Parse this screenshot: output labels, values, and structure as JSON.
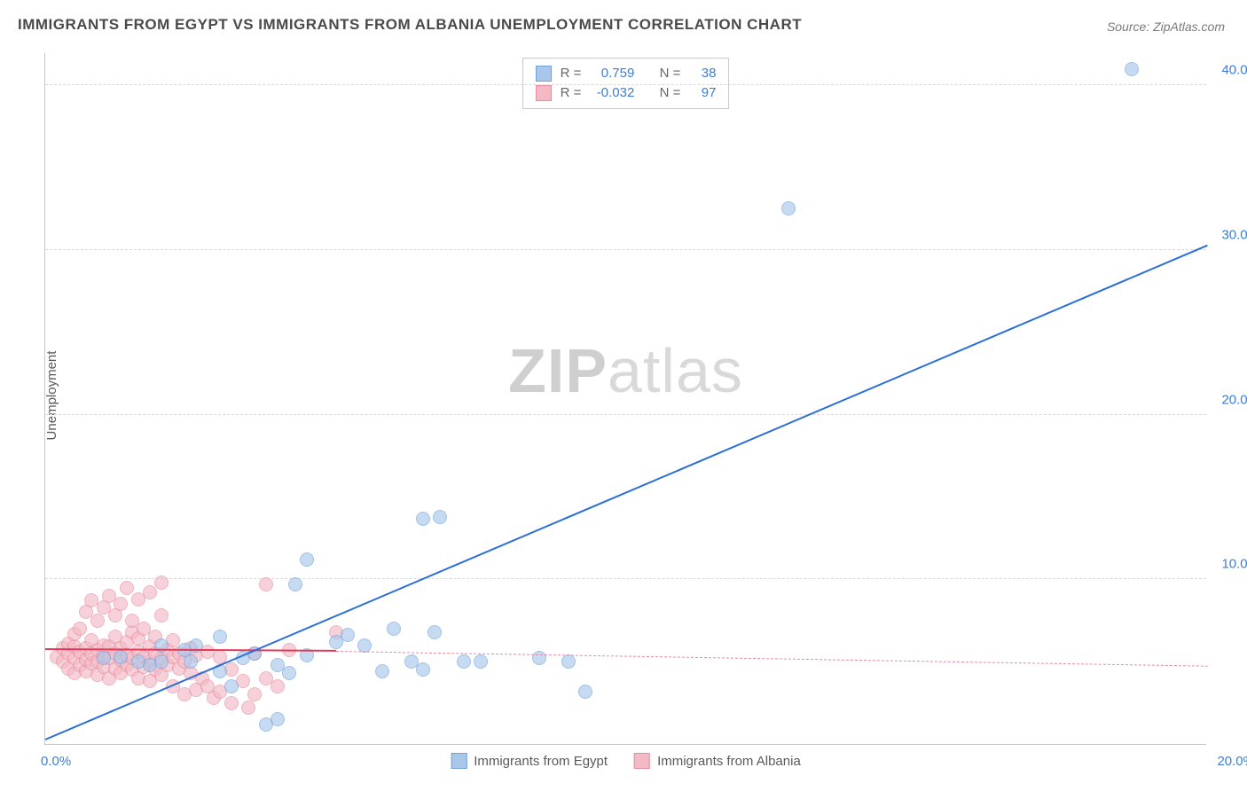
{
  "title": "IMMIGRANTS FROM EGYPT VS IMMIGRANTS FROM ALBANIA UNEMPLOYMENT CORRELATION CHART",
  "source_label": "Source:",
  "source_value": "ZipAtlas.com",
  "ylabel": "Unemployment",
  "watermark_bold": "ZIP",
  "watermark_light": "atlas",
  "chart": {
    "type": "scatter",
    "xlim": [
      0,
      20
    ],
    "ylim": [
      0,
      42
    ],
    "xticks": [
      {
        "v": 0,
        "label": "0.0%",
        "pos": "left"
      },
      {
        "v": 20,
        "label": "20.0%",
        "pos": "right"
      }
    ],
    "yticks": [
      {
        "v": 10,
        "label": "10.0%"
      },
      {
        "v": 20,
        "label": "20.0%"
      },
      {
        "v": 30,
        "label": "30.0%"
      },
      {
        "v": 40,
        "label": "40.0%"
      }
    ],
    "grid_color": "#d8d8d8",
    "background": "#ffffff",
    "marker_radius": 8,
    "series": [
      {
        "name": "Immigrants from Egypt",
        "fill": "#a9c7ea",
        "stroke": "#6fa3dd",
        "trend": {
          "x1": 0,
          "y1": 0.2,
          "x2": 20,
          "y2": 30.2,
          "color": "#2b6fd6",
          "width": 2.5,
          "dash": false
        },
        "R": "0.759",
        "N": "38",
        "points": [
          [
            3.8,
            1.2
          ],
          [
            4.0,
            1.5
          ],
          [
            3.2,
            3.5
          ],
          [
            1.8,
            4.8
          ],
          [
            2.0,
            5.0
          ],
          [
            2.5,
            5.0
          ],
          [
            3.0,
            4.4
          ],
          [
            3.4,
            5.2
          ],
          [
            3.6,
            5.5
          ],
          [
            4.0,
            4.8
          ],
          [
            4.2,
            4.3
          ],
          [
            4.5,
            5.4
          ],
          [
            5.0,
            6.2
          ],
          [
            5.2,
            6.6
          ],
          [
            5.5,
            6.0
          ],
          [
            5.8,
            4.4
          ],
          [
            6.0,
            7.0
          ],
          [
            6.3,
            5.0
          ],
          [
            6.5,
            4.5
          ],
          [
            6.7,
            6.8
          ],
          [
            7.2,
            5.0
          ],
          [
            7.5,
            5.0
          ],
          [
            8.5,
            5.2
          ],
          [
            9.0,
            5.0
          ],
          [
            9.3,
            3.2
          ],
          [
            6.5,
            13.7
          ],
          [
            6.8,
            13.8
          ],
          [
            4.5,
            11.2
          ],
          [
            4.3,
            9.7
          ],
          [
            3.0,
            6.5
          ],
          [
            2.6,
            6.0
          ],
          [
            2.4,
            5.7
          ],
          [
            2.0,
            6.0
          ],
          [
            1.6,
            5.0
          ],
          [
            1.3,
            5.3
          ],
          [
            1.0,
            5.2
          ],
          [
            12.8,
            32.5
          ],
          [
            18.7,
            41.0
          ]
        ]
      },
      {
        "name": "Immigrants from Albania",
        "fill": "#f3b9c5",
        "stroke": "#e88ba0",
        "trend_solid": {
          "x1": 0,
          "y1": 5.7,
          "x2": 5,
          "y2": 5.6,
          "color": "#e23b5a",
          "width": 2,
          "dash": false
        },
        "trend": {
          "x1": 5,
          "y1": 5.6,
          "x2": 20,
          "y2": 4.7,
          "color": "#e88ba0",
          "width": 1.5,
          "dash": true
        },
        "R": "-0.032",
        "N": "97",
        "points": [
          [
            0.2,
            5.3
          ],
          [
            0.3,
            5.0
          ],
          [
            0.3,
            5.8
          ],
          [
            0.4,
            4.6
          ],
          [
            0.4,
            5.5
          ],
          [
            0.4,
            6.1
          ],
          [
            0.5,
            4.3
          ],
          [
            0.5,
            5.2
          ],
          [
            0.5,
            5.9
          ],
          [
            0.5,
            6.7
          ],
          [
            0.6,
            4.8
          ],
          [
            0.6,
            5.6
          ],
          [
            0.6,
            7.0
          ],
          [
            0.7,
            4.4
          ],
          [
            0.7,
            5.1
          ],
          [
            0.7,
            5.8
          ],
          [
            0.7,
            8.0
          ],
          [
            0.8,
            4.9
          ],
          [
            0.8,
            5.5
          ],
          [
            0.8,
            6.3
          ],
          [
            0.8,
            8.7
          ],
          [
            0.9,
            4.2
          ],
          [
            0.9,
            5.0
          ],
          [
            0.9,
            5.7
          ],
          [
            0.9,
            7.5
          ],
          [
            1.0,
            4.7
          ],
          [
            1.0,
            5.4
          ],
          [
            1.0,
            6.0
          ],
          [
            1.0,
            8.3
          ],
          [
            1.1,
            4.0
          ],
          [
            1.1,
            5.2
          ],
          [
            1.1,
            5.9
          ],
          [
            1.1,
            9.0
          ],
          [
            1.2,
            4.6
          ],
          [
            1.2,
            5.5
          ],
          [
            1.2,
            6.5
          ],
          [
            1.2,
            7.8
          ],
          [
            1.3,
            4.3
          ],
          [
            1.3,
            5.1
          ],
          [
            1.3,
            5.8
          ],
          [
            1.3,
            8.5
          ],
          [
            1.4,
            4.8
          ],
          [
            1.4,
            5.4
          ],
          [
            1.4,
            6.2
          ],
          [
            1.4,
            9.5
          ],
          [
            1.5,
            4.5
          ],
          [
            1.5,
            5.2
          ],
          [
            1.5,
            6.8
          ],
          [
            1.5,
            7.5
          ],
          [
            1.6,
            4.0
          ],
          [
            1.6,
            5.6
          ],
          [
            1.6,
            6.4
          ],
          [
            1.6,
            8.8
          ],
          [
            1.7,
            4.7
          ],
          [
            1.7,
            5.3
          ],
          [
            1.7,
            7.0
          ],
          [
            1.8,
            3.8
          ],
          [
            1.8,
            5.0
          ],
          [
            1.8,
            5.9
          ],
          [
            1.8,
            9.2
          ],
          [
            1.9,
            4.5
          ],
          [
            1.9,
            5.5
          ],
          [
            1.9,
            6.5
          ],
          [
            2.0,
            4.2
          ],
          [
            2.0,
            5.2
          ],
          [
            2.0,
            7.8
          ],
          [
            2.0,
            9.8
          ],
          [
            2.1,
            4.8
          ],
          [
            2.1,
            5.7
          ],
          [
            2.2,
            3.5
          ],
          [
            2.2,
            5.3
          ],
          [
            2.2,
            6.3
          ],
          [
            2.3,
            4.6
          ],
          [
            2.3,
            5.5
          ],
          [
            2.4,
            3.0
          ],
          [
            2.4,
            5.0
          ],
          [
            2.5,
            4.3
          ],
          [
            2.5,
            5.8
          ],
          [
            2.6,
            3.3
          ],
          [
            2.6,
            5.4
          ],
          [
            2.7,
            4.0
          ],
          [
            2.8,
            3.5
          ],
          [
            2.8,
            5.6
          ],
          [
            2.9,
            2.8
          ],
          [
            3.0,
            3.2
          ],
          [
            3.0,
            5.3
          ],
          [
            3.2,
            2.5
          ],
          [
            3.2,
            4.5
          ],
          [
            3.4,
            3.8
          ],
          [
            3.5,
            2.2
          ],
          [
            3.6,
            3.0
          ],
          [
            3.6,
            5.5
          ],
          [
            3.8,
            4.0
          ],
          [
            3.8,
            9.7
          ],
          [
            4.0,
            3.5
          ],
          [
            4.2,
            5.7
          ],
          [
            5.0,
            6.8
          ]
        ]
      }
    ]
  },
  "legend_top": {
    "r_label": "R =",
    "n_label": "N ="
  }
}
